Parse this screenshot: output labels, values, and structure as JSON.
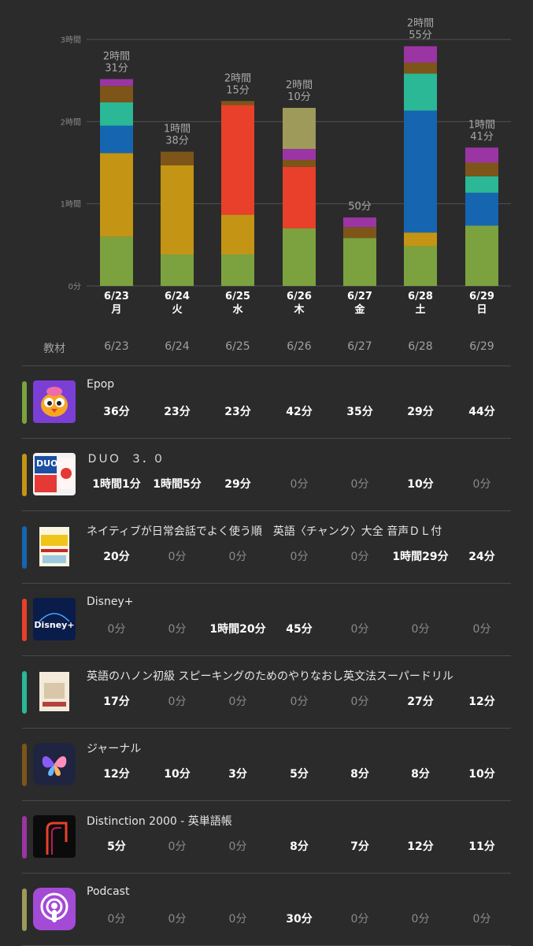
{
  "chart_data": {
    "type": "bar",
    "stacked": true,
    "categories": [
      "6/23 月",
      "6/24 火",
      "6/25 水",
      "6/26 木",
      "6/27 金",
      "6/28 土",
      "6/29 日"
    ],
    "date_labels": [
      "6/23",
      "6/24",
      "6/25",
      "6/26",
      "6/27",
      "6/28",
      "6/29"
    ],
    "weekday_labels": [
      "月",
      "火",
      "水",
      "木",
      "金",
      "土",
      "日"
    ],
    "y_ticks": [
      "0分",
      "1時間",
      "2時間",
      "3時間"
    ],
    "ylim": [
      0,
      180
    ],
    "unit": "minutes",
    "totals": [
      151,
      98,
      135,
      130,
      50,
      175,
      101
    ],
    "total_labels": [
      [
        "2時間",
        "31分"
      ],
      [
        "1時間",
        "38分"
      ],
      [
        "2時間",
        "15分"
      ],
      [
        "2時間",
        "10分"
      ],
      [
        "50分"
      ],
      [
        "2時間",
        "55分"
      ],
      [
        "1時間",
        "41分"
      ]
    ],
    "series": [
      {
        "name": "Epop",
        "color": "#7ba23f",
        "values": [
          36,
          23,
          23,
          42,
          35,
          29,
          44
        ]
      },
      {
        "name": "ＤＵＯ　３．０",
        "color": "#c49414",
        "values": [
          61,
          65,
          29,
          0,
          0,
          10,
          0
        ]
      },
      {
        "name": "ネイティブが日常会話でよく使う順　英語〈チャンク〉大全 音声ＤＬ付",
        "color": "#1565b0",
        "values": [
          20,
          0,
          0,
          0,
          0,
          89,
          24
        ]
      },
      {
        "name": "Disney+",
        "color": "#e8402a",
        "values": [
          0,
          0,
          80,
          45,
          0,
          0,
          0
        ]
      },
      {
        "name": "英語のハノン初級 スピーキングのためのやりなおし英文法スーパードリル",
        "color": "#2ab897",
        "values": [
          17,
          0,
          0,
          0,
          0,
          27,
          12
        ]
      },
      {
        "name": "ジャーナル",
        "color": "#7d5519",
        "values": [
          12,
          10,
          3,
          5,
          8,
          8,
          10
        ]
      },
      {
        "name": "Distinction 2000 - 英単語帳",
        "color": "#9b35a3",
        "values": [
          5,
          0,
          0,
          8,
          7,
          12,
          11
        ]
      },
      {
        "name": "Podcast",
        "color": "#9d9a5a",
        "values": [
          0,
          0,
          0,
          30,
          0,
          0,
          0
        ]
      }
    ]
  },
  "table": {
    "header_label": "教材",
    "dates": [
      "6/23",
      "6/24",
      "6/25",
      "6/26",
      "6/27",
      "6/28",
      "6/29"
    ],
    "rows": [
      {
        "title": "Epop",
        "color": "#7ba23f",
        "icon": "epop-bird-icon",
        "values": [
          "36分",
          "23分",
          "23分",
          "42分",
          "35分",
          "29分",
          "44分"
        ]
      },
      {
        "title": "ＤＵＯ　３．０",
        "color": "#c49414",
        "icon": "duo-book-cover",
        "values": [
          "1時間1分",
          "1時間5分",
          "29分",
          "0分",
          "0分",
          "10分",
          "0分"
        ]
      },
      {
        "title": "ネイティブが日常会話でよく使う順　英語〈チャンク〉大全 音声ＤＬ付",
        "color": "#1565b0",
        "icon": "chunk-book-cover",
        "values": [
          "20分",
          "0分",
          "0分",
          "0分",
          "0分",
          "1時間29分",
          "24分"
        ]
      },
      {
        "title": "Disney+",
        "color": "#e8402a",
        "icon": "disney-plus-icon",
        "values": [
          "0分",
          "0分",
          "1時間20分",
          "45分",
          "0分",
          "0分",
          "0分"
        ]
      },
      {
        "title": "英語のハノン初級 スピーキングのためのやりなおし英文法スーパードリル",
        "color": "#2ab897",
        "icon": "hanon-book-cover",
        "values": [
          "17分",
          "0分",
          "0分",
          "0分",
          "0分",
          "27分",
          "12分"
        ]
      },
      {
        "title": "ジャーナル",
        "color": "#7d5519",
        "icon": "journal-butterfly-icon",
        "values": [
          "12分",
          "10分",
          "3分",
          "5分",
          "8分",
          "8分",
          "10分"
        ]
      },
      {
        "title": "Distinction 2000 - 英単語帳",
        "color": "#9b35a3",
        "icon": "distinction-app-icon",
        "values": [
          "5分",
          "0分",
          "0分",
          "8分",
          "7分",
          "12分",
          "11分"
        ]
      },
      {
        "title": "Podcast",
        "color": "#9d9a5a",
        "icon": "podcast-icon",
        "values": [
          "0分",
          "0分",
          "0分",
          "30分",
          "0分",
          "0分",
          "0分"
        ]
      }
    ]
  }
}
